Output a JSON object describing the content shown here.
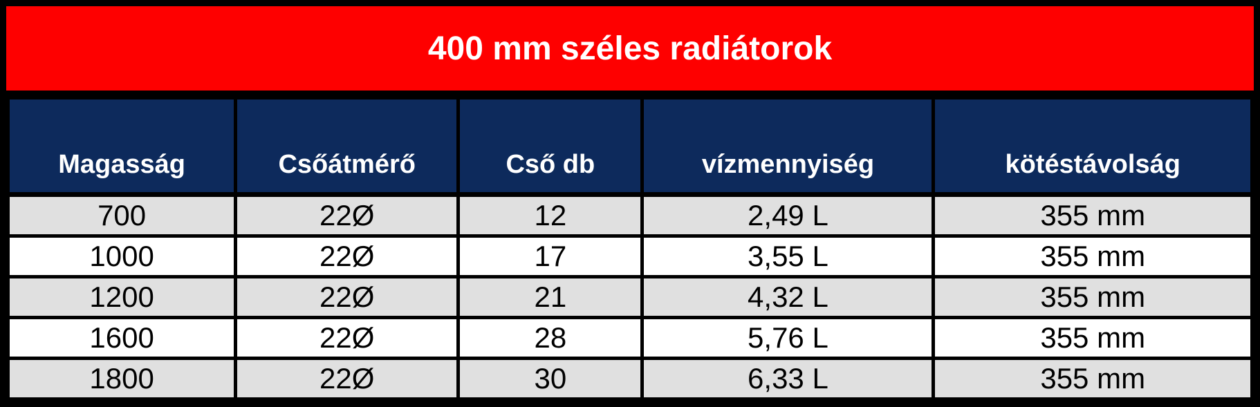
{
  "title": "400 mm széles radiátorok",
  "colors": {
    "title_bg": "#fe0000",
    "title_text": "#ffffff",
    "header_bg": "#0d2a5c",
    "header_text": "#ffffff",
    "row_alt_bg": "#e0e0e0",
    "row_bg": "#ffffff",
    "cell_text": "#000000",
    "border_color": "#000000"
  },
  "table": {
    "columns": [
      "Magasság",
      "Csőátmérő",
      "Cső db",
      "vízmennyiség",
      "kötéstávolság"
    ],
    "rows": [
      [
        "700",
        "22Ø",
        "12",
        "2,49 L",
        "355 mm"
      ],
      [
        "1000",
        "22Ø",
        "17",
        "3,55 L",
        "355 mm"
      ],
      [
        "1200",
        "22Ø",
        "21",
        "4,32 L",
        "355 mm"
      ],
      [
        "1600",
        "22Ø",
        "28",
        "5,76 L",
        "355 mm"
      ],
      [
        "1800",
        "22Ø",
        "30",
        "6,33 L",
        "355 mm"
      ]
    ]
  }
}
